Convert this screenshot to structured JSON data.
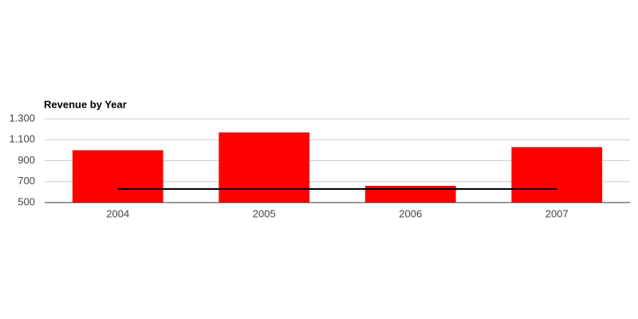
{
  "chart_data": {
    "type": "bar",
    "title": "Revenue by Year",
    "categories": [
      "2004",
      "2005",
      "2006",
      "2007"
    ],
    "series": [
      {
        "type": "bar",
        "color": "#ff0000",
        "values": [
          1000,
          1170,
          660,
          1030
        ]
      },
      {
        "type": "line",
        "color": "#000000",
        "values": [
          630,
          630,
          630,
          630
        ]
      }
    ],
    "ylim": [
      500,
      1300
    ],
    "yticks": [
      500,
      700,
      900,
      {
        "value": 1100,
        "label": "1.100"
      },
      {
        "value": 1300,
        "label": "1.300"
      }
    ],
    "grid": true
  }
}
